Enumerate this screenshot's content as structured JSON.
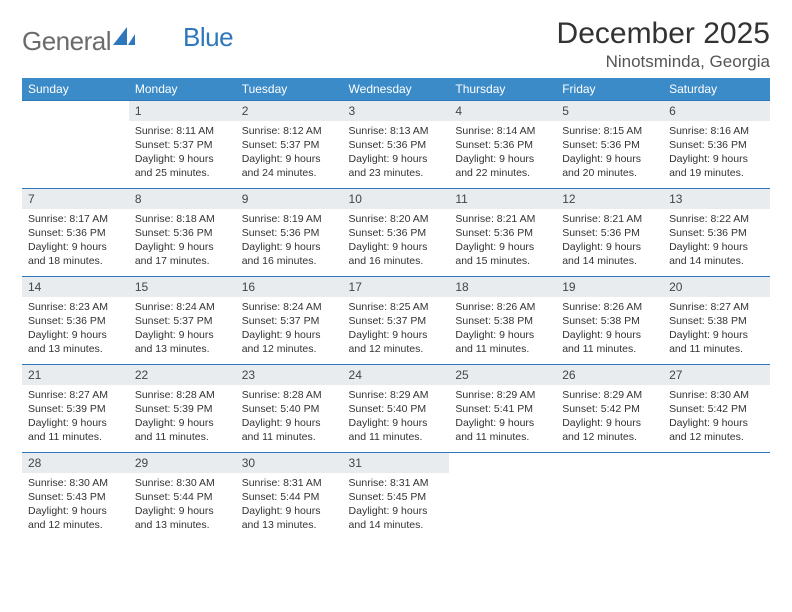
{
  "logo": {
    "text1": "General",
    "text2": "Blue"
  },
  "title": "December 2025",
  "location": "Ninotsminda, Georgia",
  "colors": {
    "header_bg": "#3b8bc9",
    "border": "#2f77bb",
    "daynum_bg": "#e9ecef",
    "logo_gray": "#6b6b6b",
    "logo_blue": "#2f77bb"
  },
  "weekdays": [
    "Sunday",
    "Monday",
    "Tuesday",
    "Wednesday",
    "Thursday",
    "Friday",
    "Saturday"
  ],
  "weeks": [
    [
      null,
      {
        "d": "1",
        "sr": "Sunrise: 8:11 AM",
        "ss": "Sunset: 5:37 PM",
        "dl1": "Daylight: 9 hours",
        "dl2": "and 25 minutes."
      },
      {
        "d": "2",
        "sr": "Sunrise: 8:12 AM",
        "ss": "Sunset: 5:37 PM",
        "dl1": "Daylight: 9 hours",
        "dl2": "and 24 minutes."
      },
      {
        "d": "3",
        "sr": "Sunrise: 8:13 AM",
        "ss": "Sunset: 5:36 PM",
        "dl1": "Daylight: 9 hours",
        "dl2": "and 23 minutes."
      },
      {
        "d": "4",
        "sr": "Sunrise: 8:14 AM",
        "ss": "Sunset: 5:36 PM",
        "dl1": "Daylight: 9 hours",
        "dl2": "and 22 minutes."
      },
      {
        "d": "5",
        "sr": "Sunrise: 8:15 AM",
        "ss": "Sunset: 5:36 PM",
        "dl1": "Daylight: 9 hours",
        "dl2": "and 20 minutes."
      },
      {
        "d": "6",
        "sr": "Sunrise: 8:16 AM",
        "ss": "Sunset: 5:36 PM",
        "dl1": "Daylight: 9 hours",
        "dl2": "and 19 minutes."
      }
    ],
    [
      {
        "d": "7",
        "sr": "Sunrise: 8:17 AM",
        "ss": "Sunset: 5:36 PM",
        "dl1": "Daylight: 9 hours",
        "dl2": "and 18 minutes."
      },
      {
        "d": "8",
        "sr": "Sunrise: 8:18 AM",
        "ss": "Sunset: 5:36 PM",
        "dl1": "Daylight: 9 hours",
        "dl2": "and 17 minutes."
      },
      {
        "d": "9",
        "sr": "Sunrise: 8:19 AM",
        "ss": "Sunset: 5:36 PM",
        "dl1": "Daylight: 9 hours",
        "dl2": "and 16 minutes."
      },
      {
        "d": "10",
        "sr": "Sunrise: 8:20 AM",
        "ss": "Sunset: 5:36 PM",
        "dl1": "Daylight: 9 hours",
        "dl2": "and 16 minutes."
      },
      {
        "d": "11",
        "sr": "Sunrise: 8:21 AM",
        "ss": "Sunset: 5:36 PM",
        "dl1": "Daylight: 9 hours",
        "dl2": "and 15 minutes."
      },
      {
        "d": "12",
        "sr": "Sunrise: 8:21 AM",
        "ss": "Sunset: 5:36 PM",
        "dl1": "Daylight: 9 hours",
        "dl2": "and 14 minutes."
      },
      {
        "d": "13",
        "sr": "Sunrise: 8:22 AM",
        "ss": "Sunset: 5:36 PM",
        "dl1": "Daylight: 9 hours",
        "dl2": "and 14 minutes."
      }
    ],
    [
      {
        "d": "14",
        "sr": "Sunrise: 8:23 AM",
        "ss": "Sunset: 5:36 PM",
        "dl1": "Daylight: 9 hours",
        "dl2": "and 13 minutes."
      },
      {
        "d": "15",
        "sr": "Sunrise: 8:24 AM",
        "ss": "Sunset: 5:37 PM",
        "dl1": "Daylight: 9 hours",
        "dl2": "and 13 minutes."
      },
      {
        "d": "16",
        "sr": "Sunrise: 8:24 AM",
        "ss": "Sunset: 5:37 PM",
        "dl1": "Daylight: 9 hours",
        "dl2": "and 12 minutes."
      },
      {
        "d": "17",
        "sr": "Sunrise: 8:25 AM",
        "ss": "Sunset: 5:37 PM",
        "dl1": "Daylight: 9 hours",
        "dl2": "and 12 minutes."
      },
      {
        "d": "18",
        "sr": "Sunrise: 8:26 AM",
        "ss": "Sunset: 5:38 PM",
        "dl1": "Daylight: 9 hours",
        "dl2": "and 11 minutes."
      },
      {
        "d": "19",
        "sr": "Sunrise: 8:26 AM",
        "ss": "Sunset: 5:38 PM",
        "dl1": "Daylight: 9 hours",
        "dl2": "and 11 minutes."
      },
      {
        "d": "20",
        "sr": "Sunrise: 8:27 AM",
        "ss": "Sunset: 5:38 PM",
        "dl1": "Daylight: 9 hours",
        "dl2": "and 11 minutes."
      }
    ],
    [
      {
        "d": "21",
        "sr": "Sunrise: 8:27 AM",
        "ss": "Sunset: 5:39 PM",
        "dl1": "Daylight: 9 hours",
        "dl2": "and 11 minutes."
      },
      {
        "d": "22",
        "sr": "Sunrise: 8:28 AM",
        "ss": "Sunset: 5:39 PM",
        "dl1": "Daylight: 9 hours",
        "dl2": "and 11 minutes."
      },
      {
        "d": "23",
        "sr": "Sunrise: 8:28 AM",
        "ss": "Sunset: 5:40 PM",
        "dl1": "Daylight: 9 hours",
        "dl2": "and 11 minutes."
      },
      {
        "d": "24",
        "sr": "Sunrise: 8:29 AM",
        "ss": "Sunset: 5:40 PM",
        "dl1": "Daylight: 9 hours",
        "dl2": "and 11 minutes."
      },
      {
        "d": "25",
        "sr": "Sunrise: 8:29 AM",
        "ss": "Sunset: 5:41 PM",
        "dl1": "Daylight: 9 hours",
        "dl2": "and 11 minutes."
      },
      {
        "d": "26",
        "sr": "Sunrise: 8:29 AM",
        "ss": "Sunset: 5:42 PM",
        "dl1": "Daylight: 9 hours",
        "dl2": "and 12 minutes."
      },
      {
        "d": "27",
        "sr": "Sunrise: 8:30 AM",
        "ss": "Sunset: 5:42 PM",
        "dl1": "Daylight: 9 hours",
        "dl2": "and 12 minutes."
      }
    ],
    [
      {
        "d": "28",
        "sr": "Sunrise: 8:30 AM",
        "ss": "Sunset: 5:43 PM",
        "dl1": "Daylight: 9 hours",
        "dl2": "and 12 minutes."
      },
      {
        "d": "29",
        "sr": "Sunrise: 8:30 AM",
        "ss": "Sunset: 5:44 PM",
        "dl1": "Daylight: 9 hours",
        "dl2": "and 13 minutes."
      },
      {
        "d": "30",
        "sr": "Sunrise: 8:31 AM",
        "ss": "Sunset: 5:44 PM",
        "dl1": "Daylight: 9 hours",
        "dl2": "and 13 minutes."
      },
      {
        "d": "31",
        "sr": "Sunrise: 8:31 AM",
        "ss": "Sunset: 5:45 PM",
        "dl1": "Daylight: 9 hours",
        "dl2": "and 14 minutes."
      },
      null,
      null,
      null
    ]
  ]
}
